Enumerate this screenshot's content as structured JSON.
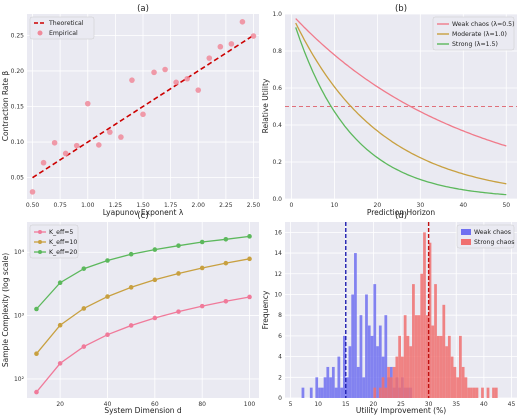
{
  "chart_data": [
    {
      "type": "scatter",
      "panel": "(a)",
      "xlabel": "Lyapunov Exponent λ",
      "ylabel": "Contraction Rate β",
      "xlim": [
        0.45,
        2.55
      ],
      "ylim": [
        0.02,
        0.28
      ],
      "xticks": [
        0.5,
        0.75,
        1.0,
        1.25,
        1.5,
        1.75,
        2.0,
        2.25,
        2.5
      ],
      "yticks": [
        0.05,
        0.1,
        0.15,
        0.2,
        0.25
      ],
      "grid": true,
      "legend": "top-left",
      "series": [
        {
          "name": "Theoretical",
          "kind": "line",
          "style": "dashed",
          "color": "#cc0000",
          "x": [
            0.5,
            2.5
          ],
          "y": [
            0.05,
            0.25
          ]
        },
        {
          "name": "Empirical",
          "kind": "scatter",
          "color": "#f08a9a",
          "x": [
            0.5,
            0.6,
            0.7,
            0.8,
            0.9,
            1.0,
            1.1,
            1.2,
            1.3,
            1.4,
            1.5,
            1.6,
            1.7,
            1.8,
            1.9,
            2.0,
            2.1,
            2.2,
            2.3,
            2.4,
            2.5
          ],
          "y": [
            0.03,
            0.071,
            0.099,
            0.084,
            0.095,
            0.154,
            0.096,
            0.114,
            0.107,
            0.187,
            0.139,
            0.198,
            0.202,
            0.184,
            0.189,
            0.173,
            0.218,
            0.234,
            0.238,
            0.269,
            0.249
          ]
        }
      ]
    },
    {
      "type": "line",
      "panel": "(b)",
      "xlabel": "Prediction Horizon",
      "ylabel": "Relative Utility",
      "xlim": [
        -1.5,
        52.5
      ],
      "ylim": [
        0,
        1.0
      ],
      "xticks": [
        0,
        10,
        20,
        30,
        40,
        50
      ],
      "yticks": [
        0.0,
        0.2,
        0.4,
        0.6,
        0.8,
        1.0
      ],
      "grid": true,
      "legend": "top-right",
      "hline": {
        "y": 0.5,
        "color": "#e0707a",
        "style": "dashed"
      },
      "series": [
        {
          "name": "Weak chaos (λ=0.5)",
          "color": "#f07a8a",
          "x0": 1,
          "x1": 50,
          "rate": 0.025
        },
        {
          "name": "Moderate (λ=1.0)",
          "color": "#c8a040",
          "x0": 1,
          "x1": 50,
          "rate": 0.05
        },
        {
          "name": "Strong (λ=1.5)",
          "color": "#5cb85c",
          "x0": 1,
          "x1": 50,
          "rate": 0.075
        }
      ]
    },
    {
      "type": "line",
      "panel": "(c)",
      "xlabel": "System Dimension d",
      "ylabel": "Sample Complexity (log scale)",
      "yscale": "log",
      "xlim": [
        6,
        104
      ],
      "ylim": [
        50,
        30000
      ],
      "xticks": [
        20,
        40,
        60,
        80,
        100
      ],
      "yticks": [
        100,
        1000,
        10000
      ],
      "ytick_labels": [
        "10²",
        "10³",
        "10⁴"
      ],
      "grid": true,
      "legend": "top-left",
      "x": [
        10,
        20,
        30,
        40,
        50,
        60,
        70,
        80,
        90,
        100
      ],
      "series": [
        {
          "name": "K_eff=5",
          "color": "#f07a9a",
          "values": [
            62,
            176,
            324,
            499,
            698,
            917,
            1155,
            1410,
            1681,
            1968
          ]
        },
        {
          "name": "K_eff=10",
          "color": "#c8a040",
          "values": [
            250,
            705,
            1296,
            1995,
            2790,
            3668,
            4620,
            5641,
            6725,
            7870
          ]
        },
        {
          "name": "K_eff=20",
          "color": "#5cb85c",
          "values": [
            1270,
            3300,
            5500,
            7400,
            9300,
            11000,
            12700,
            14500,
            16000,
            17800
          ]
        }
      ]
    },
    {
      "type": "bar",
      "subtype": "histogram",
      "panel": "(d)",
      "xlabel": "Utility Improvement (%)",
      "ylabel": "Frequency",
      "xlim": [
        4,
        46
      ],
      "ylim": [
        0,
        17
      ],
      "xticks": [
        5,
        10,
        15,
        20,
        25,
        30,
        35,
        40,
        45
      ],
      "yticks": [
        0,
        2,
        4,
        6,
        8,
        10,
        12,
        14,
        16
      ],
      "grid": true,
      "legend": "top-right",
      "bin_width": 0.5,
      "series": [
        {
          "name": "Weak chaos",
          "color": "#7070f0",
          "start": 7.0,
          "mean": 15,
          "counts": [
            1,
            0,
            0,
            1,
            0,
            2,
            1,
            1,
            2,
            3,
            2,
            3,
            1,
            4,
            1,
            6,
            2,
            5,
            10,
            14,
            3,
            8,
            2,
            10,
            7,
            6,
            11,
            5,
            7,
            4,
            8,
            2,
            3,
            1,
            2,
            1,
            2,
            1,
            1,
            1
          ]
        },
        {
          "name": "Strong chaos",
          "color": "#f07070",
          "start": 20.0,
          "mean": 30,
          "counts": [
            1,
            0,
            1,
            2,
            1,
            3,
            2,
            3,
            4,
            6,
            4,
            8,
            6,
            5,
            11,
            8,
            8,
            12,
            16,
            8,
            15,
            7,
            11,
            6,
            6,
            9,
            5,
            6,
            4,
            3,
            2,
            6,
            3,
            2,
            1,
            1,
            1,
            1,
            0,
            1,
            0,
            1,
            0,
            1,
            1
          ]
        }
      ]
    }
  ]
}
